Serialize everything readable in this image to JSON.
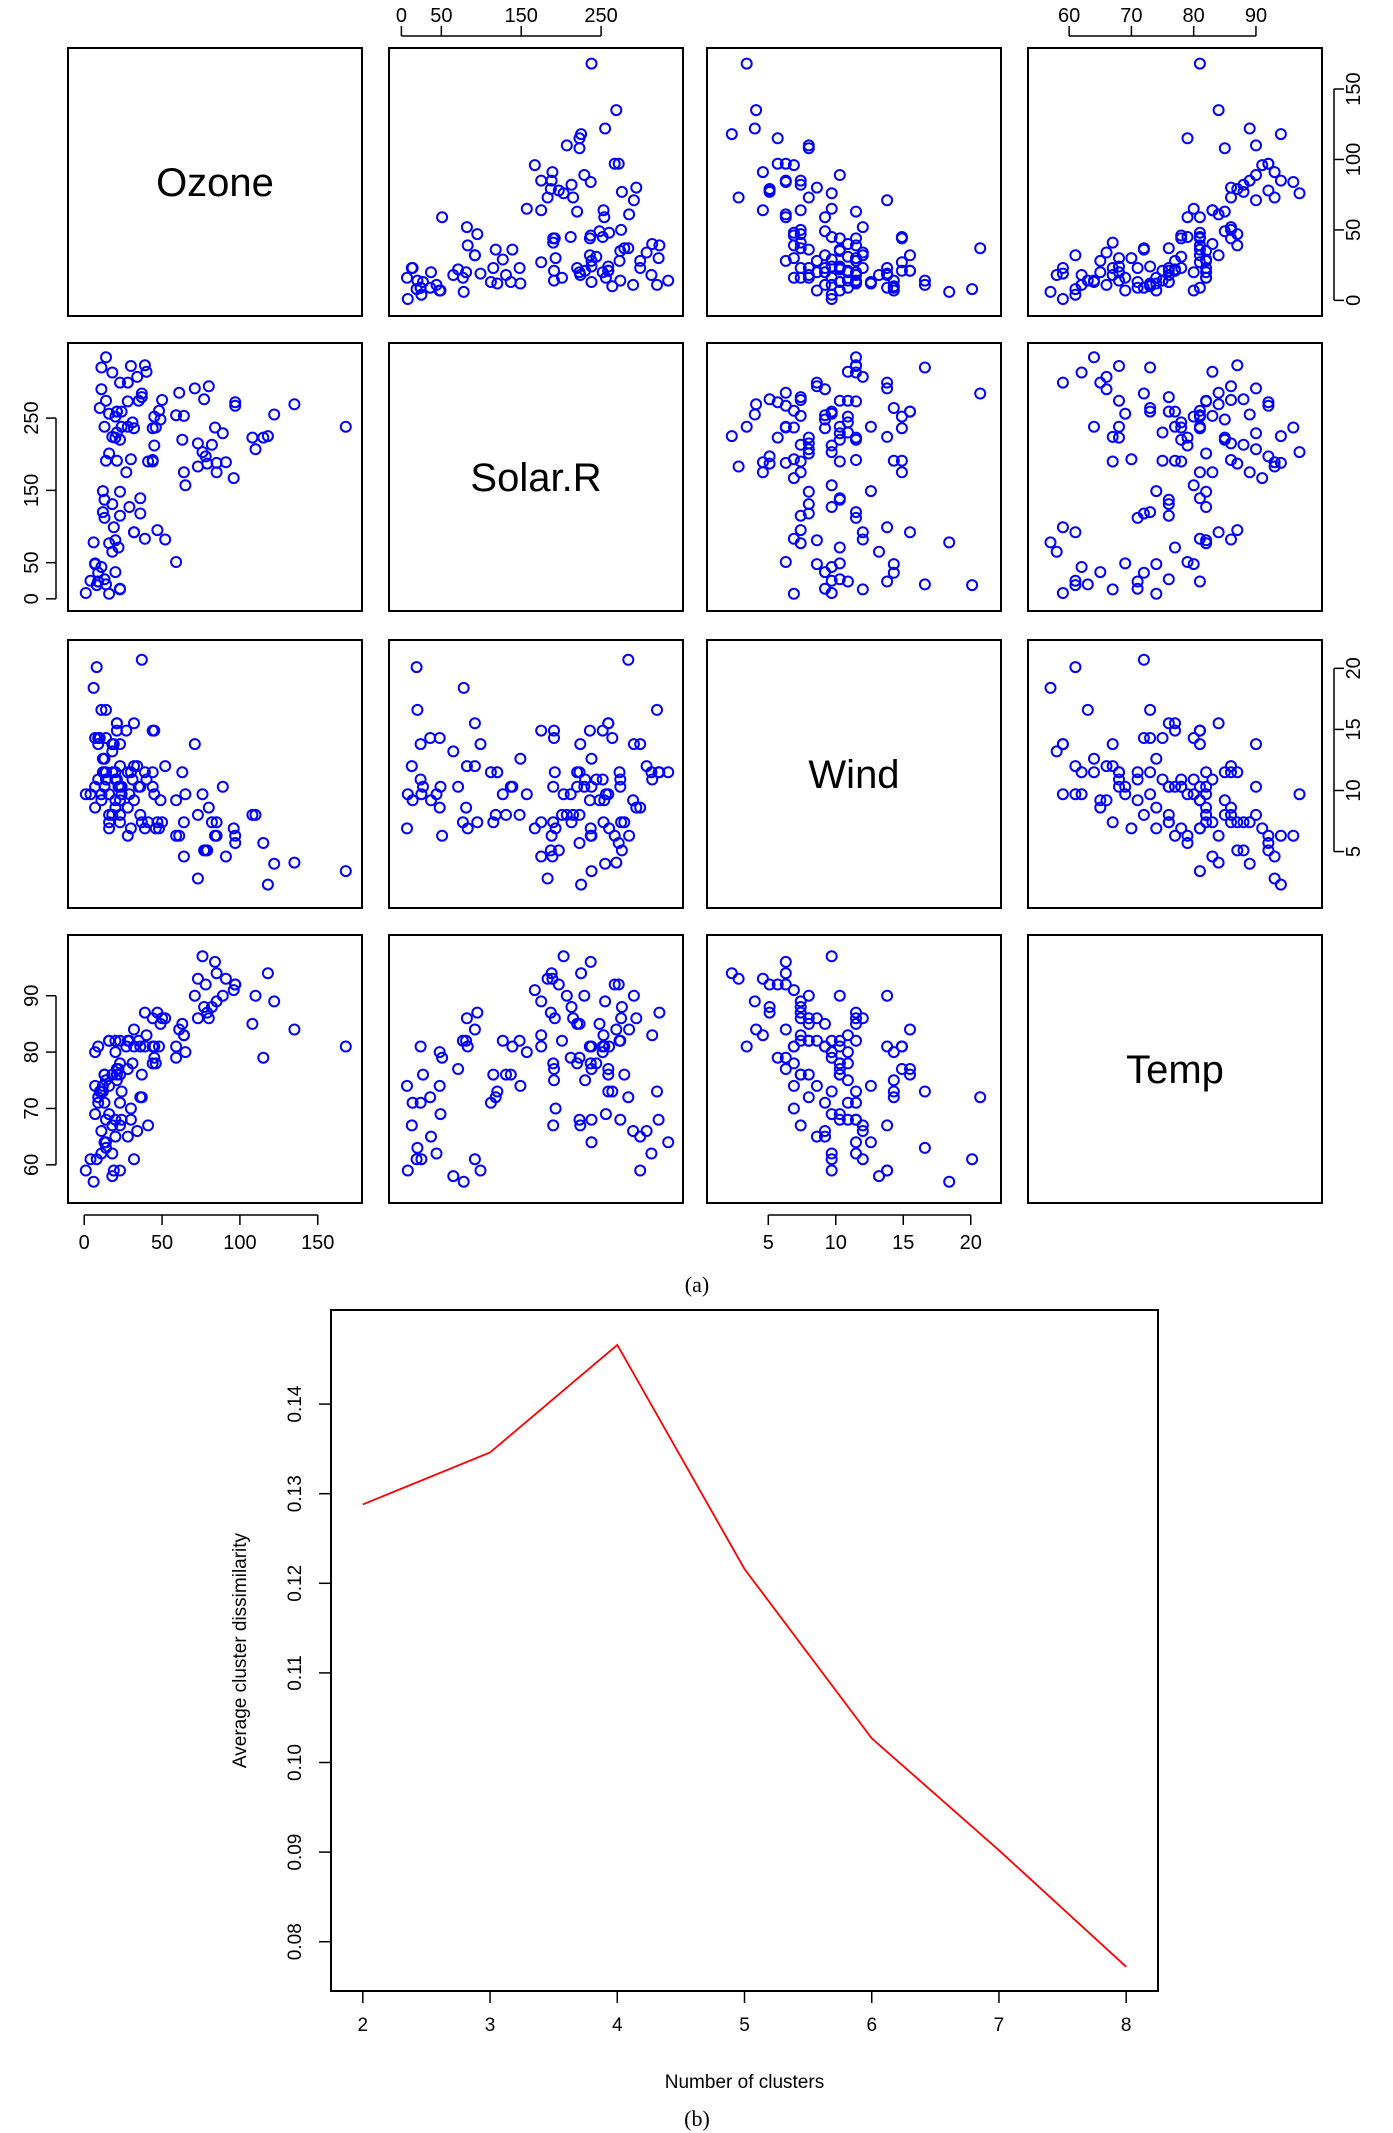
{
  "figure": {
    "caption_a": "(a)",
    "caption_b": "(b)"
  },
  "chart_data": [
    {
      "type": "scatter",
      "subtype": "scatterplot-matrix",
      "point_color": "#0000ff",
      "marker": "open-circle",
      "variables": [
        "Ozone",
        "Solar.R",
        "Wind",
        "Temp"
      ],
      "ticks": {
        "Ozone": [
          "0",
          "50",
          "100",
          "150"
        ],
        "Solar.R": [
          "0",
          "50",
          "150",
          "250"
        ],
        "Wind": [
          "5",
          "10",
          "15",
          "20"
        ],
        "Temp": [
          "60",
          "70",
          "80",
          "90"
        ]
      },
      "tick_values": {
        "Ozone": [
          0,
          50,
          100,
          150
        ],
        "Solar.R": [
          0,
          50,
          150,
          250
        ],
        "Wind": [
          5,
          10,
          15,
          20
        ],
        "Temp": [
          60,
          70,
          80,
          90
        ]
      },
      "ranges": {
        "Ozone": [
          -4,
          172
        ],
        "Solar.R": [
          -3,
          340
        ],
        "Wind": [
          1.2,
          21.5
        ],
        "Temp": [
          55,
          99
        ]
      },
      "observations": [
        [
          41,
          190,
          7.4,
          67
        ],
        [
          36,
          118,
          8.0,
          72
        ],
        [
          12,
          149,
          12.6,
          74
        ],
        [
          18,
          313,
          11.5,
          62
        ],
        [
          28,
          299,
          8.6,
          65
        ],
        [
          23,
          299,
          13.8,
          59
        ],
        [
          19,
          99,
          13.8,
          59
        ],
        [
          8,
          19,
          20.1,
          61
        ],
        [
          7,
          48,
          8.6,
          74
        ],
        [
          16,
          256,
          9.7,
          69
        ],
        [
          11,
          290,
          9.2,
          66
        ],
        [
          14,
          274,
          10.9,
          68
        ],
        [
          18,
          65,
          13.2,
          58
        ],
        [
          14,
          334,
          11.5,
          64
        ],
        [
          34,
          307,
          12.0,
          66
        ],
        [
          6,
          78,
          18.4,
          57
        ],
        [
          30,
          322,
          11.5,
          68
        ],
        [
          11,
          44,
          9.7,
          62
        ],
        [
          1,
          8,
          9.7,
          59
        ],
        [
          11,
          320,
          16.6,
          73
        ],
        [
          4,
          25,
          9.7,
          61
        ],
        [
          32,
          92,
          12.0,
          61
        ],
        [
          23,
          13,
          12.0,
          67
        ],
        [
          45,
          252,
          14.9,
          81
        ],
        [
          115,
          223,
          5.7,
          79
        ],
        [
          37,
          279,
          7.4,
          76
        ],
        [
          29,
          127,
          9.7,
          82
        ],
        [
          71,
          291,
          13.8,
          90
        ],
        [
          39,
          323,
          11.5,
          87
        ],
        [
          23,
          148,
          8.0,
          82
        ],
        [
          21,
          191,
          14.9,
          77
        ],
        [
          37,
          284,
          20.7,
          72
        ],
        [
          20,
          37,
          9.2,
          65
        ],
        [
          12,
          120,
          11.5,
          73
        ],
        [
          13,
          137,
          10.3,
          76
        ],
        [
          135,
          269,
          4.1,
          84
        ],
        [
          49,
          248,
          9.2,
          85
        ],
        [
          32,
          236,
          9.2,
          81
        ],
        [
          64,
          175,
          4.6,
          83
        ],
        [
          40,
          314,
          10.9,
          83
        ],
        [
          77,
          276,
          5.1,
          88
        ],
        [
          97,
          267,
          6.3,
          92
        ],
        [
          97,
          272,
          5.7,
          92
        ],
        [
          85,
          175,
          7.4,
          89
        ],
        [
          10,
          264,
          14.3,
          73
        ],
        [
          27,
          175,
          14.9,
          81
        ],
        [
          7,
          48,
          14.3,
          80
        ],
        [
          48,
          260,
          6.9,
          81
        ],
        [
          35,
          274,
          10.3,
          82
        ],
        [
          61,
          285,
          6.3,
          84
        ],
        [
          79,
          187,
          5.1,
          87
        ],
        [
          63,
          220,
          11.5,
          85
        ],
        [
          16,
          7,
          6.9,
          74
        ],
        [
          80,
          294,
          8.6,
          86
        ],
        [
          108,
          223,
          8.0,
          85
        ],
        [
          20,
          81,
          8.6,
          82
        ],
        [
          52,
          82,
          12.0,
          86
        ],
        [
          82,
          213,
          7.4,
          88
        ],
        [
          50,
          275,
          7.4,
          86
        ],
        [
          64,
          253,
          7.4,
          83
        ],
        [
          59,
          254,
          9.2,
          81
        ],
        [
          39,
          83,
          6.9,
          81
        ],
        [
          9,
          24,
          13.8,
          81
        ],
        [
          16,
          77,
          7.4,
          82
        ],
        [
          122,
          255,
          4.0,
          89
        ],
        [
          89,
          229,
          10.3,
          90
        ],
        [
          110,
          207,
          8.0,
          90
        ],
        [
          44,
          192,
          11.5,
          86
        ],
        [
          28,
          273,
          11.5,
          82
        ],
        [
          65,
          157,
          9.7,
          80
        ],
        [
          22,
          71,
          10.3,
          77
        ],
        [
          59,
          51,
          6.3,
          79
        ],
        [
          23,
          115,
          7.4,
          76
        ],
        [
          31,
          244,
          10.9,
          78
        ],
        [
          44,
          190,
          10.3,
          78
        ],
        [
          21,
          259,
          15.5,
          77
        ],
        [
          9,
          36,
          14.3,
          72
        ],
        [
          45,
          212,
          9.7,
          79
        ],
        [
          168,
          238,
          3.4,
          81
        ],
        [
          73,
          215,
          8.0,
          86
        ],
        [
          76,
          203,
          9.7,
          97
        ],
        [
          118,
          225,
          2.3,
          94
        ],
        [
          84,
          237,
          6.3,
          96
        ],
        [
          85,
          188,
          6.3,
          94
        ],
        [
          96,
          167,
          6.9,
          91
        ],
        [
          78,
          197,
          5.1,
          92
        ],
        [
          73,
          183,
          2.8,
          93
        ],
        [
          91,
          189,
          4.6,
          93
        ],
        [
          47,
          95,
          7.4,
          87
        ],
        [
          32,
          92,
          15.5,
          84
        ],
        [
          20,
          252,
          10.9,
          80
        ],
        [
          23,
          220,
          10.3,
          78
        ],
        [
          21,
          230,
          10.9,
          75
        ],
        [
          24,
          259,
          9.7,
          73
        ],
        [
          44,
          236,
          14.9,
          81
        ],
        [
          21,
          259,
          15.5,
          76
        ],
        [
          28,
          238,
          6.3,
          77
        ],
        [
          9,
          24,
          10.9,
          71
        ],
        [
          13,
          112,
          11.5,
          71
        ],
        [
          46,
          237,
          6.9,
          78
        ],
        [
          18,
          224,
          13.8,
          67
        ],
        [
          13,
          27,
          10.3,
          76
        ],
        [
          24,
          238,
          10.3,
          68
        ],
        [
          16,
          201,
          8.0,
          82
        ],
        [
          13,
          238,
          12.6,
          64
        ],
        [
          23,
          14,
          9.2,
          71
        ],
        [
          36,
          139,
          10.3,
          81
        ],
        [
          7,
          49,
          10.3,
          69
        ],
        [
          14,
          20,
          16.6,
          63
        ],
        [
          30,
          193,
          6.9,
          70
        ],
        [
          14,
          191,
          14.3,
          75
        ],
        [
          18,
          131,
          8.0,
          76
        ],
        [
          20,
          223,
          11.5,
          68
        ]
      ]
    },
    {
      "type": "line",
      "xlabel": "Number of clusters",
      "ylabel": "Average cluster dissimilarity",
      "x": [
        2,
        3,
        4,
        5,
        6,
        7,
        8
      ],
      "y": [
        0.1288,
        0.1346,
        0.1466,
        0.1216,
        0.1027,
        0.0902,
        0.0772
      ],
      "xlim": [
        1.75,
        8.25
      ],
      "ylim": [
        0.0745,
        0.1505
      ],
      "xticks": [
        "2",
        "3",
        "4",
        "5",
        "6",
        "7",
        "8"
      ],
      "xtick_values": [
        2,
        3,
        4,
        5,
        6,
        7,
        8
      ],
      "yticks": [
        "0.08",
        "0.09",
        "0.10",
        "0.11",
        "0.12",
        "0.13",
        "0.14"
      ],
      "ytick_values": [
        0.08,
        0.09,
        0.1,
        0.11,
        0.12,
        0.13,
        0.14
      ],
      "line_color": "#ff0000",
      "grid": false
    }
  ]
}
